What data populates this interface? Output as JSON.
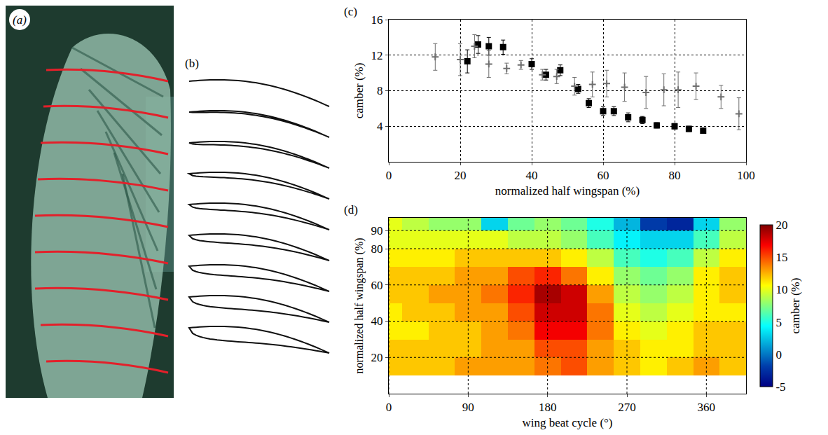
{
  "panels": [
    {
      "label": "(a)"
    },
    {
      "label": "(b)"
    }
  ],
  "chart_data": [
    {
      "label": "(c)",
      "type": "scatter",
      "xlabel": "normalized half wingspan (%)",
      "ylabel": "camber (%)",
      "xlim": [
        0,
        100
      ],
      "ylim": [
        0,
        16
      ],
      "xticks": [
        0,
        20,
        40,
        60,
        80,
        100
      ],
      "yticks": [
        4,
        8,
        12,
        16
      ],
      "grid": true,
      "series": [
        {
          "color": "#000000",
          "marker": "square",
          "x": [
            22,
            25,
            28,
            32,
            40,
            44,
            48,
            53,
            56,
            60,
            63,
            67,
            71,
            75,
            80,
            84,
            88
          ],
          "values": [
            11.3,
            13.2,
            13.0,
            12.9,
            11.0,
            9.8,
            10.3,
            8.2,
            6.6,
            5.7,
            5.7,
            5.0,
            4.7,
            4.1,
            4.0,
            3.7,
            3.5
          ],
          "errors": [
            1.3,
            1.0,
            1.0,
            0.8,
            0.6,
            0.6,
            0.6,
            0.5,
            0.5,
            0.5,
            0.5,
            0.5,
            0.4,
            0.3,
            0.3,
            0.3,
            0.3
          ]
        },
        {
          "color": "#6e6e6e",
          "marker": "cross",
          "x": [
            13,
            20,
            24,
            28,
            33,
            37,
            43,
            47,
            52,
            57,
            61,
            66,
            72,
            77,
            81,
            86,
            93,
            98
          ],
          "values": [
            11.8,
            11.5,
            13.0,
            11.0,
            10.5,
            10.9,
            9.8,
            9.6,
            8.5,
            8.7,
            8.8,
            8.4,
            7.8,
            8.1,
            8.1,
            8.5,
            7.3,
            5.4
          ],
          "errors": [
            1.5,
            1.8,
            1.3,
            1.5,
            0.6,
            0.5,
            0.6,
            0.8,
            1.0,
            1.4,
            1.5,
            1.6,
            1.8,
            1.8,
            2.0,
            1.5,
            1.3,
            1.8
          ]
        }
      ]
    },
    {
      "label": "(d)",
      "type": "heatmap",
      "xlabel": "wing beat cycle (°)",
      "ylabel": "normalized half wingspan (%)",
      "colorbar_title": "camber (%)",
      "xlim": [
        0,
        405
      ],
      "ylim": [
        0,
        97
      ],
      "xticks": [
        0,
        90,
        180,
        270,
        360
      ],
      "yticks": [
        20,
        40,
        60,
        80,
        90
      ],
      "grid": true,
      "colorbar_range": [
        -5,
        20
      ],
      "colorbar_ticks": [
        -5,
        0,
        5,
        10,
        15,
        20
      ],
      "x": [
        0,
        30,
        60,
        90,
        120,
        150,
        180,
        210,
        240,
        270,
        300,
        330,
        360,
        390
      ],
      "y": [
        5,
        15,
        25,
        35,
        45,
        55,
        65,
        75,
        85,
        95
      ],
      "z": [
        [
          null,
          null,
          null,
          null,
          null,
          null,
          null,
          null,
          null,
          null,
          null,
          null,
          null,
          null
        ],
        [
          12,
          12,
          12,
          13,
          13,
          13,
          14,
          15,
          13,
          12,
          11,
          12,
          13,
          12
        ],
        [
          12,
          12,
          12,
          12,
          13,
          13,
          15,
          15,
          13,
          12,
          11,
          11,
          12,
          12
        ],
        [
          11,
          11,
          12,
          12,
          13,
          14,
          17,
          17,
          14,
          11,
          10,
          11,
          12,
          12
        ],
        [
          11,
          12,
          12,
          13,
          13,
          15,
          18,
          18,
          14,
          10,
          9,
          10,
          11,
          11
        ],
        [
          12,
          12,
          13,
          13,
          14,
          16,
          19,
          18,
          13,
          9,
          8,
          9,
          11,
          12
        ],
        [
          12,
          12,
          12,
          13,
          13,
          15,
          16,
          14,
          11,
          8,
          7,
          8,
          11,
          12
        ],
        [
          11,
          11,
          11,
          12,
          12,
          12,
          12,
          11,
          9,
          6,
          5,
          6,
          9,
          11
        ],
        [
          10,
          10,
          10,
          10,
          10,
          9,
          9,
          8,
          6,
          4,
          3,
          3,
          6,
          9
        ],
        [
          10,
          9,
          8,
          8,
          3,
          7,
          8,
          7,
          5,
          2,
          -2,
          -3,
          3,
          8
        ]
      ]
    }
  ]
}
